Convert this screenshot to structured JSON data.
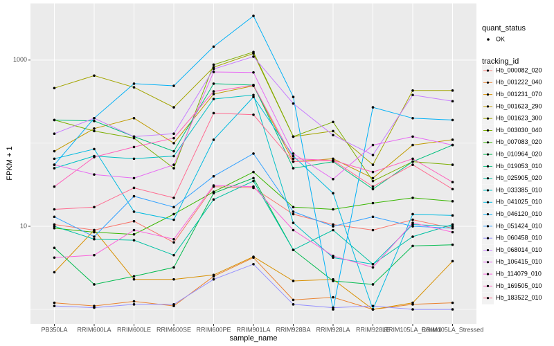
{
  "chart_data": {
    "type": "line",
    "xlabel": "sample_name",
    "ylabel": "FPKM + 1",
    "categories": [
      "PB350LA",
      "RRIM600LA",
      "RRIM600LE",
      "RRIM600SE",
      "RRIM600PE",
      "RRIM901LA",
      "RRIM928BA",
      "RRIM928LA",
      "RRIM928LE",
      "RRIM105LA_Control",
      "RRIM105LA_Stressed"
    ],
    "ylim": [
      0.67,
      4800
    ],
    "yticks": [
      10,
      1000
    ],
    "yminor": [
      1,
      100
    ],
    "log_y": true,
    "grid": true,
    "point_color": "#000000",
    "legend_point": {
      "title": "quant_status",
      "label": "OK"
    },
    "legend_title": "tracking_id",
    "series": [
      {
        "name": "Hb_000082_020",
        "color": "#F8766D",
        "values": [
          10.5,
          9,
          11.5,
          6.4,
          30,
          29,
          14,
          10.5,
          9,
          12,
          9.5
        ]
      },
      {
        "name": "Hb_001222_040",
        "color": "#EA8331",
        "values": [
          1.2,
          1.1,
          1.25,
          1.1,
          2.5,
          4.2,
          1.3,
          1.4,
          1.0,
          1.15,
          1.2
        ]
      },
      {
        "name": "Hb_001231_070",
        "color": "#D89000",
        "values": [
          2.8,
          9,
          2.3,
          2.3,
          2.6,
          4.3,
          2.2,
          2.3,
          1.0,
          1.2,
          3.8
        ]
      },
      {
        "name": "Hb_001623_290",
        "color": "#C09B00",
        "values": [
          80,
          150,
          200,
          100,
          390,
          490,
          60,
          65,
          38,
          95,
          110
        ]
      },
      {
        "name": "Hb_001623_300",
        "color": "#A3A500",
        "values": [
          460,
          650,
          470,
          270,
          820,
          1200,
          120,
          140,
          55,
          430,
          430
        ]
      },
      {
        "name": "Hb_003030_040",
        "color": "#7CAE00",
        "values": [
          190,
          140,
          115,
          50,
          880,
          1250,
          120,
          180,
          35,
          60,
          55
        ]
      },
      {
        "name": "Hb_007083_020",
        "color": "#39B600",
        "values": [
          9.5,
          8.5,
          8,
          14,
          26,
          45,
          17,
          16,
          19,
          22,
          20
        ]
      },
      {
        "name": "Hb_010964_020",
        "color": "#00BB4E",
        "values": [
          5.5,
          2.0,
          2.5,
          3.2,
          25,
          38,
          5.2,
          2.2,
          2.0,
          5.8,
          6.0
        ]
      },
      {
        "name": "Hb_019053_010",
        "color": "#00BF7D",
        "values": [
          190,
          185,
          120,
          80,
          520,
          500,
          50,
          60,
          28,
          60,
          95
        ]
      },
      {
        "name": "Hb_025905_020",
        "color": "#00C1A3",
        "values": [
          10,
          7,
          6.8,
          4.5,
          21,
          35,
          5.2,
          9.0,
          3.5,
          7.5,
          10.5
        ]
      },
      {
        "name": "Hb_033385_010",
        "color": "#00BFC4",
        "values": [
          50,
          70,
          65,
          70,
          340,
          380,
          11,
          4.2,
          3.5,
          10.5,
          10
        ]
      },
      {
        "name": "Hb_041025_010",
        "color": "#00BAE0",
        "values": [
          65,
          85,
          15,
          12,
          110,
          360,
          70,
          25,
          1.0,
          14,
          13.5
        ]
      },
      {
        "name": "Hb_046120_010",
        "color": "#00B0F6",
        "values": [
          55,
          200,
          520,
          490,
          1450,
          3400,
          360,
          1.0,
          270,
          200,
          190
        ]
      },
      {
        "name": "Hb_051424_010",
        "color": "#35A2FF",
        "values": [
          13,
          7.5,
          23,
          17,
          40,
          75,
          15,
          10,
          13,
          10,
          9.5
        ]
      },
      {
        "name": "Hb_060458_010",
        "color": "#9590FF",
        "values": [
          1.1,
          1.05,
          1.15,
          1.15,
          2.3,
          3.5,
          1.15,
          1.05,
          1.1,
          1.0,
          1.0
        ]
      },
      {
        "name": "Hb_068014_010",
        "color": "#C77CFF",
        "values": [
          130,
          200,
          120,
          130,
          780,
          1100,
          300,
          125,
          72,
          380,
          320
        ]
      },
      {
        "name": "Hb_106415_010",
        "color": "#E76BF3",
        "values": [
          55,
          42,
          38,
          55,
          720,
          710,
          75,
          37,
          95,
          120,
          95
        ]
      },
      {
        "name": "Hb_114079_010",
        "color": "#FA62DB",
        "values": [
          4.2,
          4.5,
          9.0,
          7,
          31,
          30,
          9.0,
          4.4,
          3.2,
          11,
          8.5
        ]
      },
      {
        "name": "Hb_169505_010",
        "color": "#FF62BC",
        "values": [
          30,
          68,
          90,
          115,
          420,
          500,
          65,
          62,
          45,
          65,
          34
        ]
      },
      {
        "name": "Hb_183522_010",
        "color": "#FF6C91",
        "values": [
          16,
          17,
          29,
          22,
          230,
          220,
          60,
          62,
          30,
          55,
          28
        ]
      }
    ]
  }
}
